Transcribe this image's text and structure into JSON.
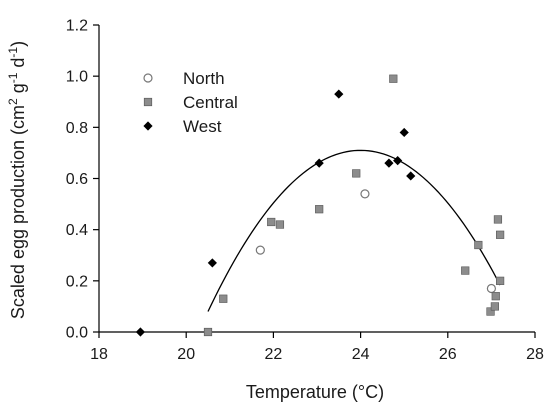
{
  "chart_data": {
    "type": "scatter",
    "xlabel": "Temperature (°C)",
    "ylabel": {
      "text": "Scaled egg production (cm",
      "sup1": "2",
      "mid1": " g",
      "sup2": "-1",
      "mid2": " d",
      "sup3": "-1",
      "end": ")"
    },
    "xlim": [
      18,
      28
    ],
    "ylim": [
      0,
      1.2
    ],
    "x_ticks": [
      "18",
      "20",
      "22",
      "24",
      "26",
      "28"
    ],
    "y_ticks": [
      "0.0",
      "0.2",
      "0.4",
      "0.6",
      "0.8",
      "1.0",
      "1.2"
    ],
    "legend_position": "top-left",
    "series": [
      {
        "name": "North",
        "marker": "open-circle",
        "color": "#777777",
        "points": [
          [
            21.7,
            0.32
          ],
          [
            24.1,
            0.54
          ],
          [
            27.0,
            0.17
          ]
        ]
      },
      {
        "name": "Central",
        "marker": "square",
        "color": "#8c8c8c",
        "points": [
          [
            20.5,
            0.0
          ],
          [
            20.85,
            0.13
          ],
          [
            21.95,
            0.43
          ],
          [
            22.15,
            0.42
          ],
          [
            23.05,
            0.48
          ],
          [
            23.9,
            0.62
          ],
          [
            24.75,
            0.99
          ],
          [
            26.4,
            0.24
          ],
          [
            26.7,
            0.34
          ],
          [
            26.98,
            0.08
          ],
          [
            27.08,
            0.1
          ],
          [
            27.1,
            0.14
          ],
          [
            27.15,
            0.44
          ],
          [
            27.2,
            0.38
          ],
          [
            27.2,
            0.2
          ]
        ]
      },
      {
        "name": "West",
        "marker": "diamond",
        "color": "#000000",
        "points": [
          [
            18.95,
            0.0
          ],
          [
            20.6,
            0.27
          ],
          [
            23.05,
            0.66
          ],
          [
            23.5,
            0.93
          ],
          [
            24.65,
            0.66
          ],
          [
            24.85,
            0.67
          ],
          [
            25.0,
            0.78
          ],
          [
            25.15,
            0.61
          ]
        ]
      }
    ],
    "fit_curve": {
      "type": "quadratic",
      "peak_x": 24.0,
      "peak_y": 0.71,
      "x_range": [
        20.5,
        27.2
      ],
      "value_at_start": 0.08
    }
  }
}
